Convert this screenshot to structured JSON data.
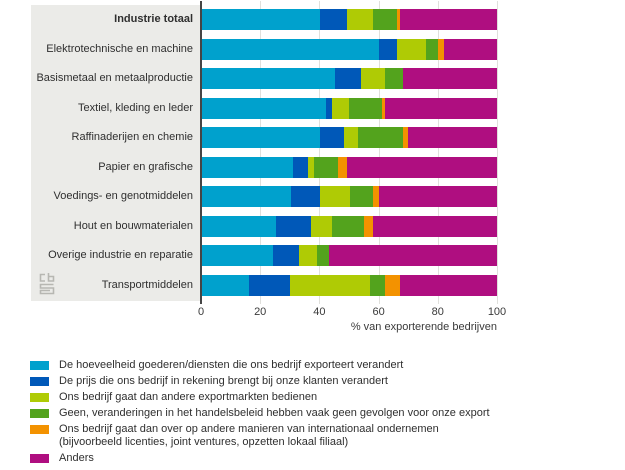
{
  "chart_data": {
    "type": "bar",
    "stacked": true,
    "orientation": "horizontal",
    "unit": "%",
    "xlabel": "% van exporterende bedrijven",
    "xlim": [
      0,
      100
    ],
    "x_ticks": [
      0,
      20,
      40,
      60,
      80,
      100
    ],
    "grid": true,
    "legend_position": "bottom",
    "emphasized_category": "Industrie totaal",
    "categories": [
      "Industrie totaal",
      "Elektrotechnische en machine",
      "Basismetaal en metaalproductie",
      "Textiel, kleding en leder",
      "Raffinaderijen en chemie",
      "Papier en grafische",
      "Voedings- en genotmiddelen",
      "Hout en bouwmaterialen",
      "Overige industrie en reparatie",
      "Transportmiddelen"
    ],
    "series": [
      {
        "name": "De hoeveelheid goederen/diensten die ons bedrijf exporteert verandert",
        "color": "#00a1cd",
        "values": [
          40,
          60,
          45,
          42,
          40,
          31,
          30,
          25,
          24,
          16
        ]
      },
      {
        "name": "De prijs die ons bedrijf in rekening brengt bij onze klanten verandert",
        "color": "#0058b8",
        "values": [
          9,
          6,
          9,
          2,
          8,
          5,
          10,
          12,
          9,
          14
        ]
      },
      {
        "name": "Ons bedrijf gaat dan andere exportmarkten bedienen",
        "color": "#afcb05",
        "values": [
          9,
          10,
          8,
          6,
          5,
          2,
          10,
          7,
          6,
          27
        ]
      },
      {
        "name": "Geen, veranderingen in het handelsbeleid hebben vaak geen gevolgen voor onze export",
        "color": "#53a31d",
        "values": [
          8,
          4,
          6,
          11,
          15,
          8,
          8,
          11,
          4,
          5
        ]
      },
      {
        "name": "Ons bedrijf gaat dan over op andere manieren van internationaal ondernemen (bijvoorbeeld licenties, joint ventures, opzetten lokaal filiaal)",
        "color": "#f39200",
        "values": [
          1,
          2,
          0,
          1,
          2,
          3,
          2,
          3,
          0,
          5
        ]
      },
      {
        "name": "Anders",
        "color": "#af0e80",
        "values": [
          33,
          18,
          32,
          38,
          30,
          51,
          40,
          42,
          57,
          33
        ]
      }
    ]
  },
  "legend": {
    "items": [
      {
        "lines": [
          "De hoeveelheid goederen/diensten die ons bedrijf exporteert verandert"
        ]
      },
      {
        "lines": [
          "De prijs die ons bedrijf in rekening brengt bij onze klanten verandert"
        ]
      },
      {
        "lines": [
          "Ons bedrijf gaat dan andere exportmarkten bedienen"
        ]
      },
      {
        "lines": [
          "Geen, veranderingen in het handelsbeleid hebben vaak geen gevolgen voor onze export"
        ]
      },
      {
        "lines": [
          "Ons bedrijf gaat dan over op andere manieren van internationaal ondernemen",
          "(bijvoorbeeld licenties, joint ventures, opzetten lokaal filiaal)"
        ]
      },
      {
        "lines": [
          "Anders"
        ]
      }
    ]
  },
  "branding": {
    "logo_text": "cbs"
  }
}
